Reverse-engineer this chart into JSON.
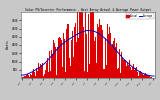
{
  "title": "Solar PV/Inverter Performance - West Array Actual & Average Power Output",
  "ylabel": "Watts",
  "background_color": "#c8c8c8",
  "plot_bg_color": "#ffffff",
  "bar_color": "#dd0000",
  "avg_line_color": "#0000cc",
  "grid_color": "#aaaaaa",
  "num_points": 365,
  "peak_day": 175,
  "peak_value": 3800,
  "ylim": [
    0,
    4000
  ],
  "yticks": [
    500,
    1000,
    1500,
    2000,
    2500,
    3000,
    3500
  ],
  "legend_actual_color": "#dd0000",
  "legend_avg_color": "#0000cc",
  "legend_actual_label": "Actual",
  "legend_avg_label": "Average"
}
